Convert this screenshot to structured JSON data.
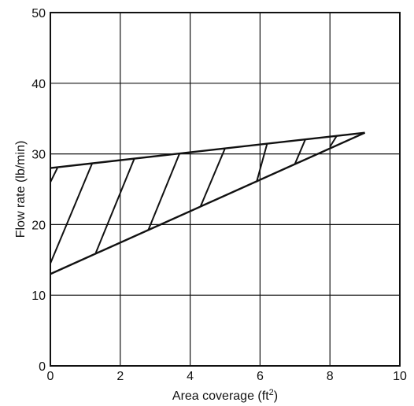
{
  "chart_data": {
    "type": "area",
    "title": "",
    "xlabel": "Area coverage (ft",
    "xlabel_superscript": "2",
    "xlabel_close": ")",
    "ylabel": "Flow rate (lb/min)",
    "xlim": [
      0,
      10
    ],
    "ylim": [
      0,
      50
    ],
    "xticks": [
      0,
      2,
      4,
      6,
      8,
      10
    ],
    "yticks": [
      0,
      10,
      20,
      30,
      40,
      50
    ],
    "xtick_labels": [
      "0",
      "2",
      "4",
      "6",
      "8",
      "10"
    ],
    "ytick_labels": [
      "0",
      "10",
      "20",
      "30",
      "40",
      "50"
    ],
    "grid": true,
    "series": [
      {
        "points": [
          [
            0,
            28
          ],
          [
            9,
            33
          ]
        ]
      },
      {
        "points": [
          [
            0,
            13
          ],
          [
            9,
            33
          ]
        ]
      }
    ],
    "hatch_lines": [
      [
        [
          0,
          26
        ],
        [
          0.2,
          28
        ]
      ],
      [
        [
          0,
          14.5
        ],
        [
          1.2,
          28.7
        ]
      ],
      [
        [
          1.3,
          16
        ],
        [
          2.4,
          29.3
        ]
      ],
      [
        [
          2.8,
          19.2
        ],
        [
          3.7,
          30.1
        ]
      ],
      [
        [
          4.3,
          22.6
        ],
        [
          5,
          30.8
        ]
      ],
      [
        [
          5.9,
          26
        ],
        [
          6.2,
          31.4
        ]
      ],
      [
        [
          7,
          28.6
        ],
        [
          7.3,
          32.1
        ]
      ],
      [
        [
          8,
          31
        ],
        [
          8.2,
          32.6
        ]
      ]
    ]
  }
}
